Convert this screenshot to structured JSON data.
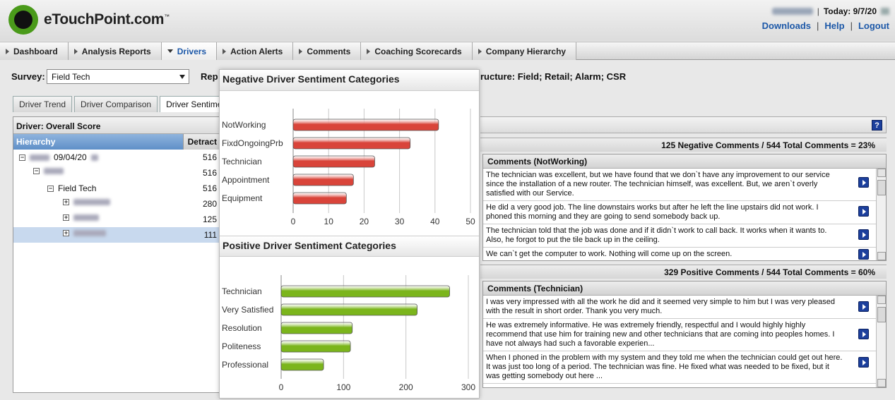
{
  "header": {
    "logo_text": "eTouchPoint.com",
    "logo_tm": "™",
    "today_label": "Today: 9/7/20",
    "links": [
      "Downloads",
      "Help",
      "Logout"
    ]
  },
  "nav": {
    "items": [
      "Dashboard",
      "Analysis Reports",
      "Drivers",
      "Action Alerts",
      "Comments",
      "Coaching Scorecards",
      "Company Hierarchy"
    ],
    "active": "Drivers"
  },
  "survey": {
    "label": "Survey:",
    "value": "Field Tech",
    "rep_label": "Rep"
  },
  "structure_text": "ructure: Field; Retail; Alarm; CSR",
  "subtabs": [
    "Driver Trend",
    "Driver Comparison",
    "Driver Sentiments"
  ],
  "left_panel": {
    "title": "Driver: Overall Score",
    "col_hierarchy": "Hierarchy",
    "col_detract": "Detract",
    "rows": [
      {
        "label": "09/04/20",
        "value": "516"
      },
      {
        "label": "",
        "value": "516"
      },
      {
        "label": "Field Tech",
        "value": "516"
      },
      {
        "label": "",
        "value": "280"
      },
      {
        "label": "",
        "value": "125"
      },
      {
        "label": "",
        "value": "111"
      }
    ]
  },
  "negative": {
    "summary": "125 Negative Comments / 544 Total Comments = 23%",
    "box_title": "Comments (NotWorking)",
    "comments": [
      "The technician was excellent, but we have found that we don`t have any improvement to our       service since the installation of a new router. The technician himself, was excellent. But, we aren`t overly satisfied with our       Service.",
      "He did a very good job. The line downstairs works but after he left the line upstairs did not work. I phoned this morning and they are going to send somebody back up.",
      "The technician told that the job was done and if it didn`t work to call back. It works when it wants to. Also, he forgot to put the tile back up in the ceiling.",
      "We can`t get the computer to work. Nothing will come up on the screen."
    ]
  },
  "positive": {
    "summary": "329 Positive Comments / 544 Total Comments = 60%",
    "box_title": "Comments (Technician)",
    "comments": [
      "I was very impressed with all the work he did and it seemed very simple to him but I was very pleased with the result in short order. Thank you very much.",
      "He was extremely informative. He was extremely friendly, respectful and I would highly highly recommend that       use him for training new and other technicians that are coming into peoples homes. I have not always had such a favorable experien...",
      "When I phoned in the problem with my       system and they told me when the technician could get out here. It was just too long of a period. The technician was fine. He fixed what was needed to be fixed, but it was       getting somebody out here ..."
    ]
  },
  "chart_data": [
    {
      "type": "bar",
      "orientation": "horizontal",
      "title": "Negative Driver Sentiment Categories",
      "categories": [
        "NotWorking",
        "FixdOngoingPrb",
        "Technician",
        "Appointment",
        "Equipment"
      ],
      "values": [
        41,
        33,
        23,
        17,
        15
      ],
      "xlim": [
        0,
        50
      ],
      "ticks": [
        0,
        10,
        20,
        30,
        40,
        50
      ],
      "color": "#d9443a",
      "grid": true
    },
    {
      "type": "bar",
      "orientation": "horizontal",
      "title": "Positive Driver Sentiment Categories",
      "categories": [
        "Technician",
        "Very Satisfied",
        "Resolution",
        "Politeness",
        "Professional"
      ],
      "values": [
        270,
        218,
        114,
        111,
        68
      ],
      "xlim": [
        0,
        300
      ],
      "ticks": [
        0,
        100,
        200,
        300
      ],
      "color": "#7bb51c",
      "grid": true
    }
  ]
}
